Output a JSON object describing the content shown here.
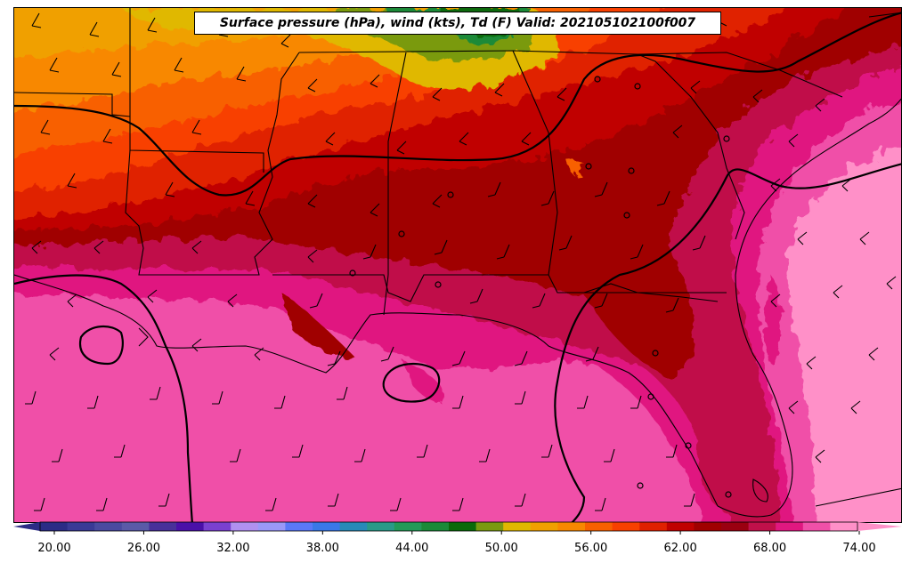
{
  "title": "Surface pressure (hPa), wind (kts), Td (F) Valid: 202105102100f007",
  "colorbar": {
    "tick_labels": [
      "20.00",
      "26.00",
      "32.00",
      "38.00",
      "44.00",
      "50.00",
      "56.00",
      "62.00",
      "68.00",
      "74.00"
    ],
    "colors": [
      "#2c2c86",
      "#3a3a96",
      "#4a4aa0",
      "#5a5aa8",
      "#48309a",
      "#4a10a8",
      "#7a40d0",
      "#b090f0",
      "#9a98f8",
      "#5a78f8",
      "#3a78e8",
      "#288ab8",
      "#2a9a88",
      "#239a58",
      "#1a8a38",
      "#0a6a0a",
      "#7a9a10",
      "#e0b800",
      "#f0a000",
      "#f88800",
      "#f86000",
      "#f84000",
      "#e02000",
      "#c00000",
      "#a00000",
      "#9a0010",
      "#c0104a",
      "#e01880",
      "#f050a8",
      "#ff90c8"
    ],
    "min_color": "#2c2c86",
    "max_color": "#ff90c8"
  }
}
